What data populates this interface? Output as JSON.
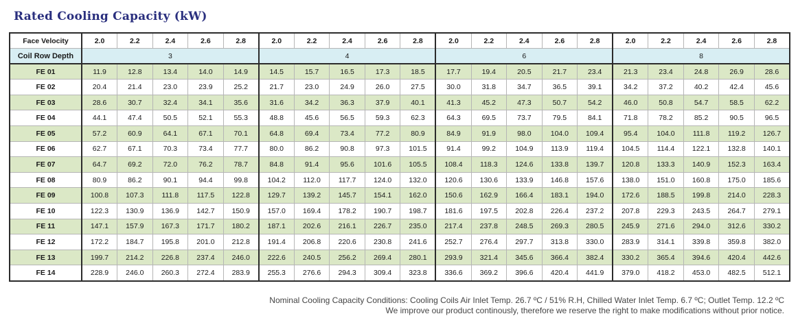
{
  "title": "Rated Cooling Capacity (kW)",
  "header": {
    "face_velocity_label": "Face Velocity",
    "velocities": [
      "2.0",
      "2.2",
      "2.4",
      "2.6",
      "2.8"
    ],
    "coil_row_depth_label": "Coil Row Depth",
    "row_depths": [
      "3",
      "4",
      "6",
      "8"
    ]
  },
  "rows": [
    {
      "label": "FE 01",
      "values": [
        "11.9",
        "12.8",
        "13.4",
        "14.0",
        "14.9",
        "14.5",
        "15.7",
        "16.5",
        "17.3",
        "18.5",
        "17.7",
        "19.4",
        "20.5",
        "21.7",
        "23.4",
        "21.3",
        "23.4",
        "24.8",
        "26.9",
        "28.6"
      ]
    },
    {
      "label": "FE 02",
      "values": [
        "20.4",
        "21.4",
        "23.0",
        "23.9",
        "25.2",
        "21.7",
        "23.0",
        "24.9",
        "26.0",
        "27.5",
        "30.0",
        "31.8",
        "34.7",
        "36.5",
        "39.1",
        "34.2",
        "37.2",
        "40.2",
        "42.4",
        "45.6"
      ]
    },
    {
      "label": "FE 03",
      "values": [
        "28.6",
        "30.7",
        "32.4",
        "34.1",
        "35.6",
        "31.6",
        "34.2",
        "36.3",
        "37.9",
        "40.1",
        "41.3",
        "45.2",
        "47.3",
        "50.7",
        "54.2",
        "46.0",
        "50.8",
        "54.7",
        "58.5",
        "62.2"
      ]
    },
    {
      "label": "FE 04",
      "values": [
        "44.1",
        "47.4",
        "50.5",
        "52.1",
        "55.3",
        "48.8",
        "45.6",
        "56.5",
        "59.3",
        "62.3",
        "64.3",
        "69.5",
        "73.7",
        "79.5",
        "84.1",
        "71.8",
        "78.2",
        "85.2",
        "90.5",
        "96.5"
      ]
    },
    {
      "label": "FE 05",
      "values": [
        "57.2",
        "60.9",
        "64.1",
        "67.1",
        "70.1",
        "64.8",
        "69.4",
        "73.4",
        "77.2",
        "80.9",
        "84.9",
        "91.9",
        "98.0",
        "104.0",
        "109.4",
        "95.4",
        "104.0",
        "111.8",
        "119.2",
        "126.7"
      ]
    },
    {
      "label": "FE 06",
      "values": [
        "62.7",
        "67.1",
        "70.3",
        "73.4",
        "77.7",
        "80.0",
        "86.2",
        "90.8",
        "97.3",
        "101.5",
        "91.4",
        "99.2",
        "104.9",
        "113.9",
        "119.4",
        "104.5",
        "114.4",
        "122.1",
        "132.8",
        "140.1"
      ]
    },
    {
      "label": "FE 07",
      "values": [
        "64.7",
        "69.2",
        "72.0",
        "76.2",
        "78.7",
        "84.8",
        "91.4",
        "95.6",
        "101.6",
        "105.5",
        "108.4",
        "118.3",
        "124.6",
        "133.8",
        "139.7",
        "120.8",
        "133.3",
        "140.9",
        "152.3",
        "163.4"
      ]
    },
    {
      "label": "FE 08",
      "values": [
        "80.9",
        "86.2",
        "90.1",
        "94.4",
        "99.8",
        "104.2",
        "112.0",
        "117.7",
        "124.0",
        "132.0",
        "120.6",
        "130.6",
        "133.9",
        "146.8",
        "157.6",
        "138.0",
        "151.0",
        "160.8",
        "175.0",
        "185.6"
      ]
    },
    {
      "label": "FE 09",
      "values": [
        "100.8",
        "107.3",
        "111.8",
        "117.5",
        "122.8",
        "129.7",
        "139.2",
        "145.7",
        "154.1",
        "162.0",
        "150.6",
        "162.9",
        "166.4",
        "183.1",
        "194.0",
        "172.6",
        "188.5",
        "199.8",
        "214.0",
        "228.3"
      ]
    },
    {
      "label": "FE 10",
      "values": [
        "122.3",
        "130.9",
        "136.9",
        "142.7",
        "150.9",
        "157.0",
        "169.4",
        "178.2",
        "190.7",
        "198.7",
        "181.6",
        "197.5",
        "202.8",
        "226.4",
        "237.2",
        "207.8",
        "229.3",
        "243.5",
        "264.7",
        "279.1"
      ]
    },
    {
      "label": "FE 11",
      "values": [
        "147.1",
        "157.9",
        "167.3",
        "171.7",
        "180.2",
        "187.1",
        "202.6",
        "216.1",
        "226.7",
        "235.0",
        "217.4",
        "237.8",
        "248.5",
        "269.3",
        "280.5",
        "245.9",
        "271.6",
        "294.0",
        "312.6",
        "330.2"
      ]
    },
    {
      "label": "FE 12",
      "values": [
        "172.2",
        "184.7",
        "195.8",
        "201.0",
        "212.8",
        "191.4",
        "206.8",
        "220.6",
        "230.8",
        "241.6",
        "252.7",
        "276.4",
        "297.7",
        "313.8",
        "330.0",
        "283.9",
        "314.1",
        "339.8",
        "359.8",
        "382.0"
      ]
    },
    {
      "label": "FE 13",
      "values": [
        "199.7",
        "214.2",
        "226.8",
        "237.4",
        "246.0",
        "222.6",
        "240.5",
        "256.2",
        "269.4",
        "280.1",
        "293.9",
        "321.4",
        "345.6",
        "366.4",
        "382.4",
        "330.2",
        "365.4",
        "394.6",
        "420.4",
        "442.6"
      ]
    },
    {
      "label": "FE 14",
      "values": [
        "228.9",
        "246.0",
        "260.3",
        "272.4",
        "283.9",
        "255.3",
        "276.6",
        "294.3",
        "309.4",
        "323.8",
        "336.6",
        "369.2",
        "396.6",
        "420.4",
        "441.9",
        "379.0",
        "418.2",
        "453.0",
        "482.5",
        "512.1"
      ]
    }
  ],
  "notes": {
    "line1": "Nominal Cooling Capacity Conditions: Cooling Coils Air Inlet Temp. 26.7 ºC / 51% R.H, Chilled Water Inlet Temp. 6.7 ºC; Outlet Temp. 12.2 ºC",
    "line2": "We improve our product continously, therefore we reserve the right to make modifications without prior notice."
  },
  "colors": {
    "title": "#2a2f7e",
    "row_green": "#dbe8c6",
    "row_white": "#ffffff",
    "depth_row": "#d8eef3"
  }
}
